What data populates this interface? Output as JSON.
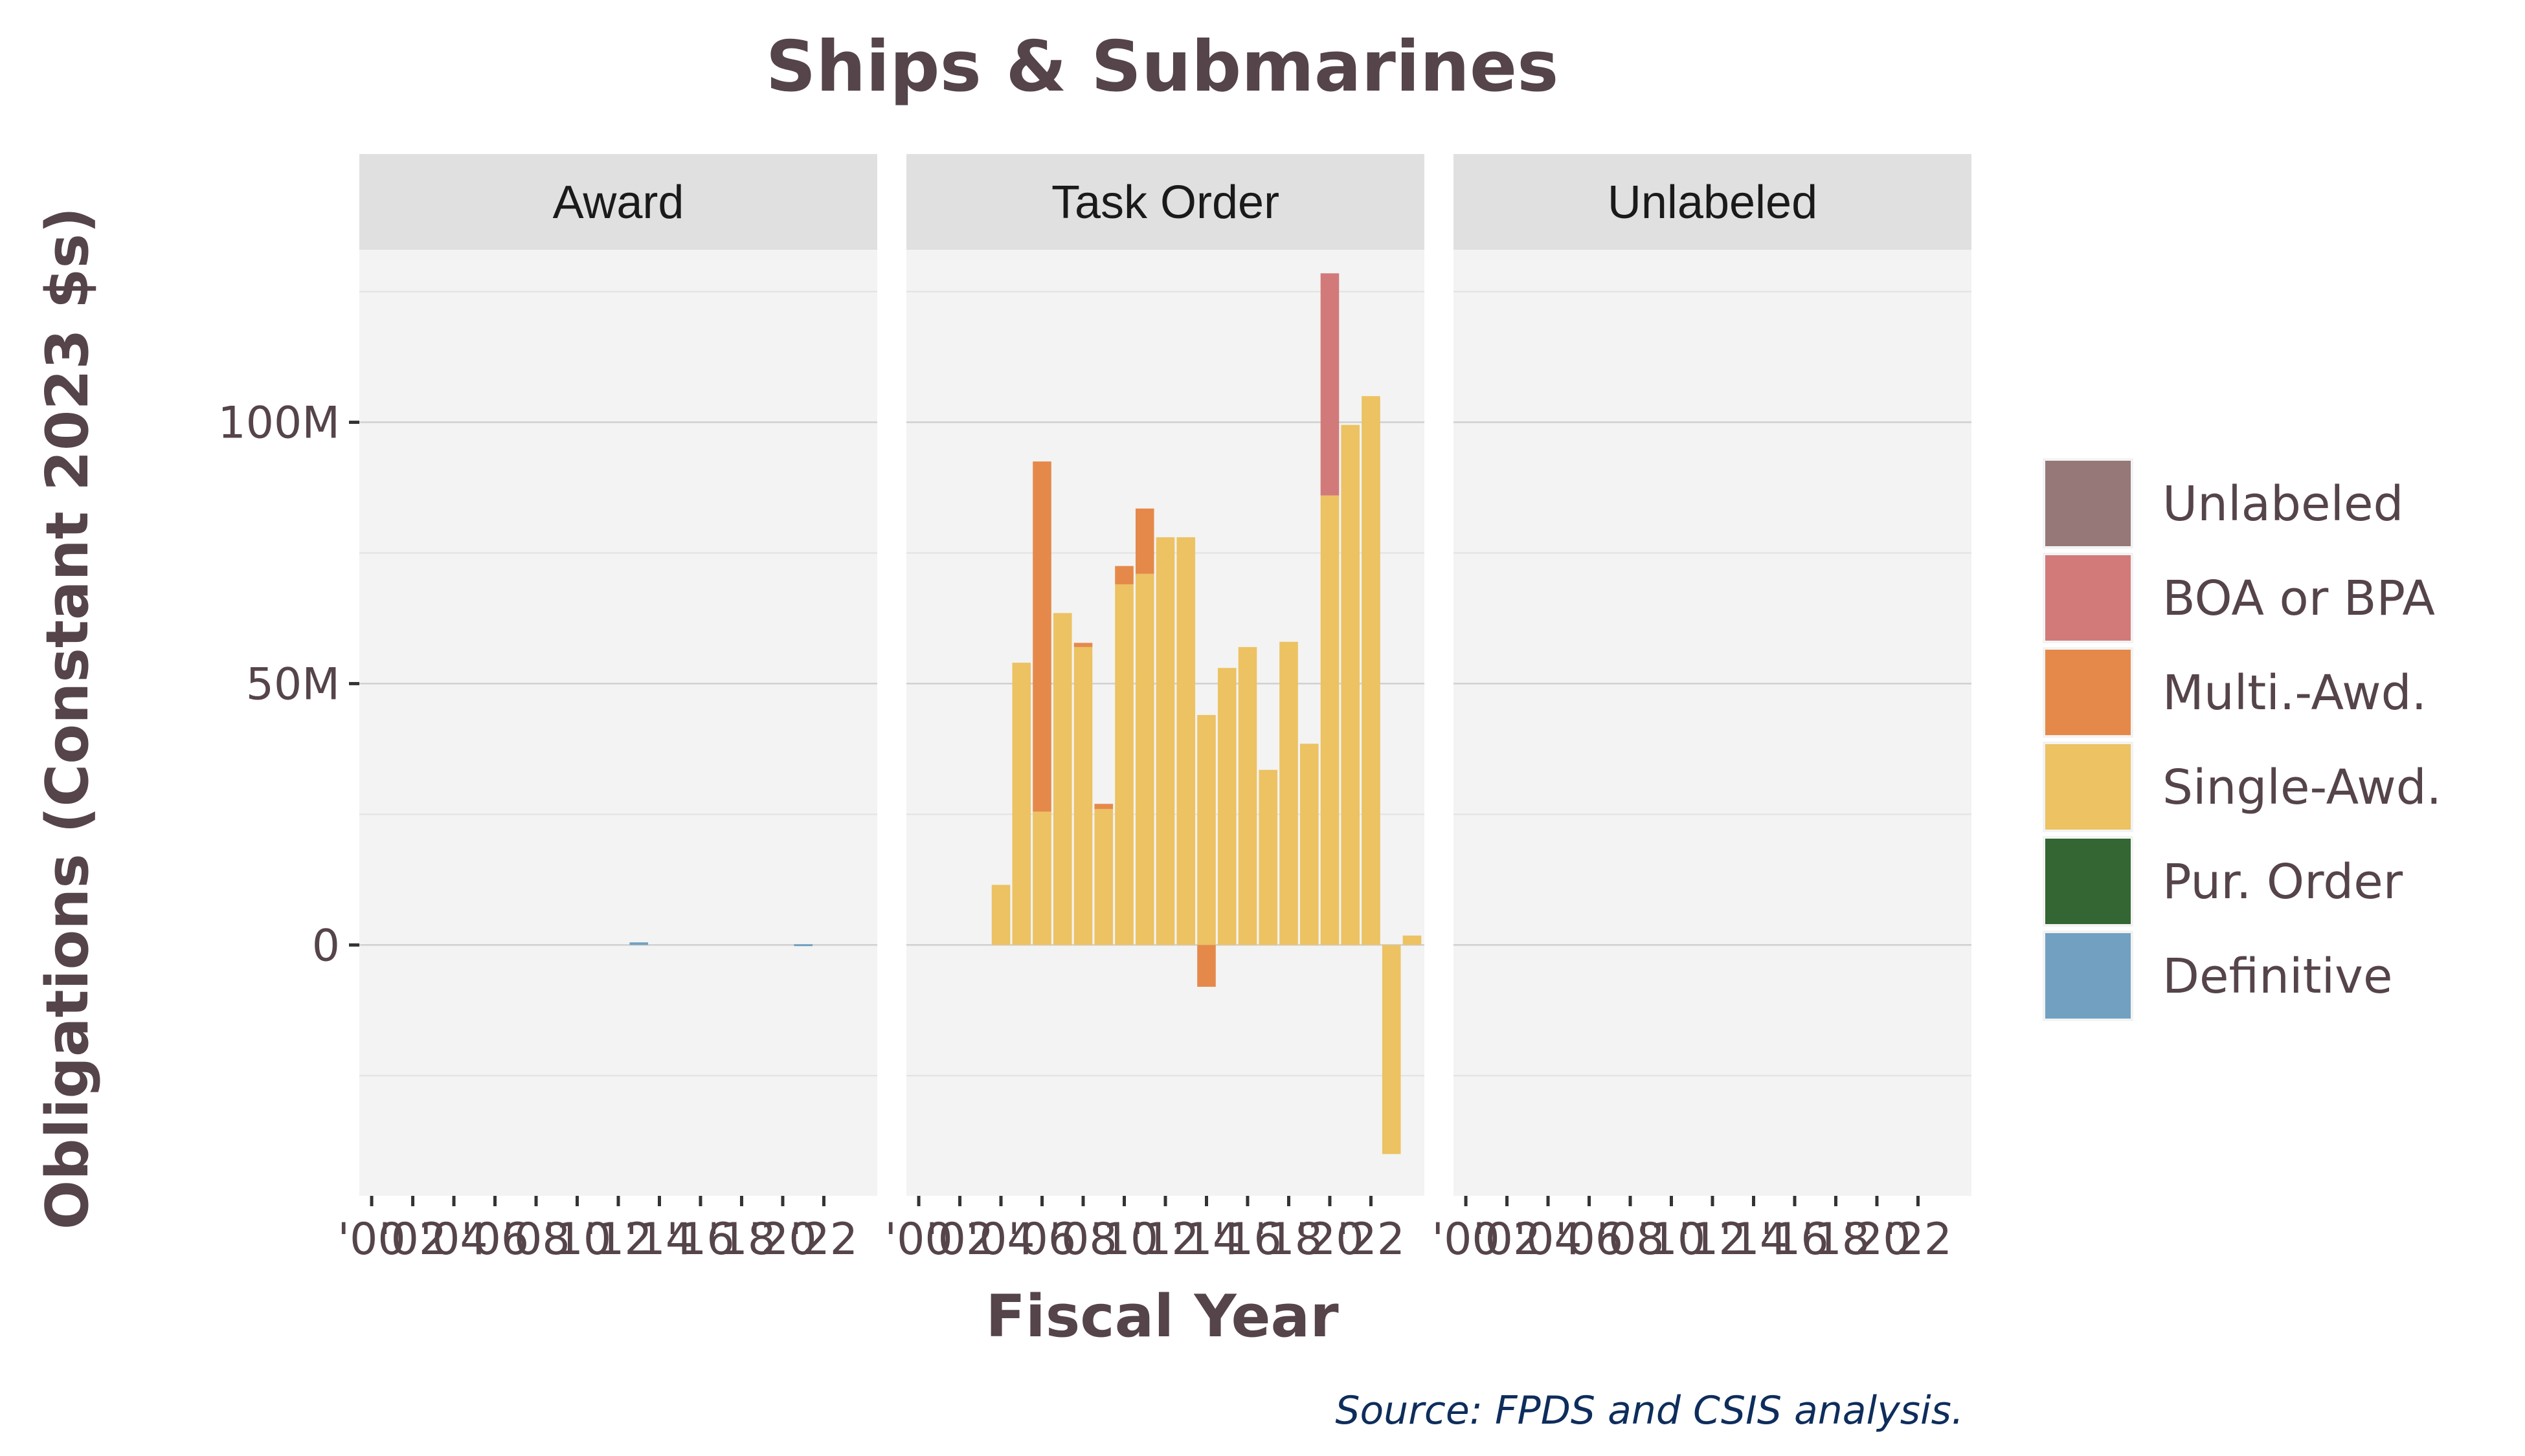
{
  "chart_data": {
    "type": "bar",
    "stacked": true,
    "title": "Ships & Submarines",
    "xlabel": "Fiscal Year",
    "ylabel": "Obligations (Constant 2023 $s)",
    "caption": "Source: FPDS and CSIS analysis.",
    "ylim": [
      -48000000,
      133000000
    ],
    "xlim": [
      1999.4,
      2024.6
    ],
    "y_ticks": [
      0,
      50000000,
      100000000
    ],
    "y_tick_labels": [
      "0",
      "50M",
      "100M"
    ],
    "x_ticks": [
      2000,
      2002,
      2004,
      2006,
      2008,
      2010,
      2012,
      2014,
      2016,
      2018,
      2020,
      2022
    ],
    "x_tick_labels": [
      "'00",
      "'02",
      "'04",
      "'06",
      "'08",
      "'10",
      "'12",
      "'14",
      "'16",
      "'18",
      "'20",
      "'22"
    ],
    "grid": true,
    "legend_position": "right",
    "colors": {
      "Unlabeled": "#967878",
      "BOA or BPA": "#d27a7a",
      "Multi.-Awd.": "#e5894a",
      "Single-Awd.": "#ecc262",
      "Pur. Order": "#336633",
      "Definitive": "#72a0c1"
    },
    "legend": [
      "Unlabeled",
      "BOA or BPA",
      "Multi.-Awd.",
      "Single-Awd.",
      "Pur. Order",
      "Definitive"
    ],
    "panels": [
      {
        "label": "Award",
        "x": [
          2013,
          2021
        ],
        "series": [
          {
            "name": "Definitive",
            "values": [
              500000,
              150000
            ]
          }
        ]
      },
      {
        "label": "Task Order",
        "x": [
          2004,
          2005,
          2006,
          2007,
          2008,
          2009,
          2010,
          2011,
          2012,
          2013,
          2014,
          2015,
          2016,
          2017,
          2018,
          2019,
          2020,
          2021,
          2022,
          2023,
          2024
        ],
        "series": [
          {
            "name": "Single-Awd.",
            "values": [
              11500000,
              54000000,
              25500000,
              63500000,
              57000000,
              26000000,
              69000000,
              71000000,
              78000000,
              78000000,
              44000000,
              53000000,
              57000000,
              33500000,
              58000000,
              38500000,
              86000000,
              99500000,
              105000000,
              -40000000,
              1800000
            ]
          },
          {
            "name": "Multi.-Awd.",
            "values": [
              0,
              0,
              67000000,
              0,
              800000,
              1000000,
              3500000,
              12500000,
              0,
              0,
              -8000000,
              0,
              0,
              0,
              0,
              0,
              0,
              0,
              0,
              0,
              0
            ]
          },
          {
            "name": "BOA or BPA",
            "values": [
              0,
              0,
              0,
              0,
              0,
              0,
              0,
              0,
              0,
              0,
              0,
              0,
              0,
              0,
              0,
              0,
              42500000,
              0,
              0,
              0,
              0
            ]
          }
        ]
      },
      {
        "label": "Unlabeled",
        "x": [],
        "series": []
      }
    ]
  }
}
